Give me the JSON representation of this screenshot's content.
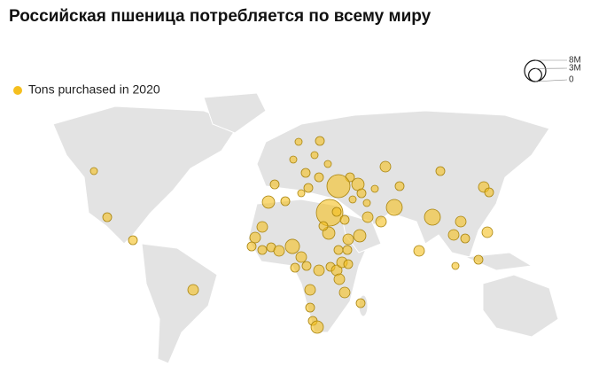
{
  "title": "Российская пшеница потребляется по всему миру",
  "legend": {
    "label": "Tons purchased in 2020",
    "color": "#f5bf1e"
  },
  "size_legend": {
    "ticks": [
      {
        "value": 8000000,
        "label": "8M"
      },
      {
        "value": 3000000,
        "label": "3M"
      },
      0
    ]
  },
  "bubbles": {
    "values": [
      900000,
      1400000,
      1400000,
      2000000,
      2700000,
      2000000,
      2000000,
      1400000,
      1400000,
      1400000,
      2000000,
      3600000,
      2000000,
      1400000,
      1400000,
      2000000,
      1400000,
      2000000,
      2000000,
      1400000,
      1400000,
      1400000,
      2700000,
      2700000,
      2000000,
      2000000,
      2000000,
      1400000,
      1400000,
      2700000,
      1400000,
      2000000,
      4500000,
      2000000,
      2000000,
      1400000,
      2000000,
      1400000,
      900000,
      2000000,
      1400000,
      1400000,
      2000000,
      4500000,
      2000000,
      2000000,
      900000,
      1400000,
      2700000,
      1400000,
      1400000,
      900000,
      900000,
      900000,
      900000,
      1400000,
      1400000,
      9400000,
      12500000,
      1400000,
      1400000,
      900000,
      1400000,
      1400000,
      900000,
      900000,
      1400000,
      2000000,
      1400000,
      1400000
    ]
  }
}
